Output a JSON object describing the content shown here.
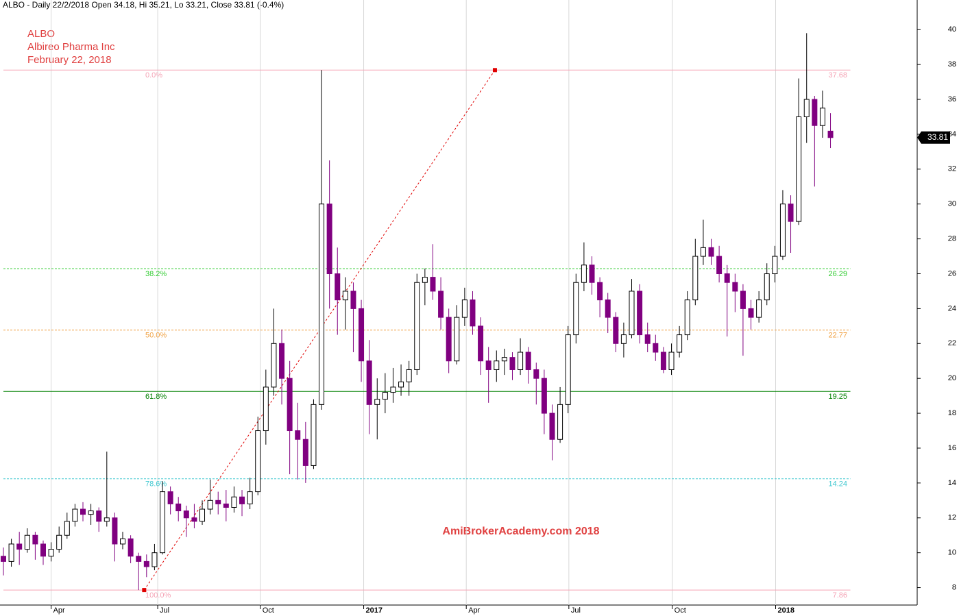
{
  "chart_data": {
    "type": "candlestick",
    "header": "ALBO - Daily 22/2/2018 Open 34.18, Hi 35.21, Lo 33.21, Close 33.81 (-0.4%)",
    "title_lines": [
      "ALBO",
      "Albireo Pharma Inc",
      "February 22, 2018"
    ],
    "watermark": "AmiBrokerAcademy.com  2018",
    "up_color": "#000000",
    "down_color": "#800080",
    "xlim": [
      -0.43,
      114.9
    ],
    "xticks": [
      {
        "value": 6,
        "label": "Apr"
      },
      {
        "value": 19.4,
        "label": "Jul"
      },
      {
        "value": 32.3,
        "label": "Oct"
      },
      {
        "value": 45.3,
        "label": "2017",
        "major": true
      },
      {
        "value": 58.2,
        "label": "Apr"
      },
      {
        "value": 71.1,
        "label": "Jul"
      },
      {
        "value": 84.1,
        "label": "Oct"
      },
      {
        "value": 97.1,
        "label": "2018",
        "major": true
      }
    ],
    "ylim": [
      7.0,
      41.7
    ],
    "yticks": [
      8,
      10,
      12,
      14,
      16,
      18,
      20,
      22,
      24,
      26,
      28,
      30,
      32,
      34,
      36,
      38,
      40
    ],
    "fib_anchors": [
      {
        "x": 17.7,
        "y": 7.86
      },
      {
        "x": 61.8,
        "y": 37.68
      }
    ],
    "fib_levels": [
      {
        "value": 37.68,
        "label": "0.0%",
        "color": "#f5a3b5",
        "dash": false
      },
      {
        "value": 26.29,
        "label": "38.2%",
        "color": "#33cc33",
        "dash": true
      },
      {
        "value": 22.77,
        "label": "50.0%",
        "color": "#f0a040",
        "dash": true
      },
      {
        "value": 19.25,
        "label": "61.8%",
        "color": "#008000",
        "dash": false
      },
      {
        "value": 14.24,
        "label": "78.6%",
        "color": "#40c8d0",
        "dash": true
      },
      {
        "value": 7.86,
        "label": "100.0%",
        "color": "#f5a3b5",
        "dash": false
      }
    ],
    "candles": [
      [
        9.8,
        10.3,
        8.7,
        9.5
      ],
      [
        9.5,
        10.8,
        9.2,
        10.5
      ],
      [
        10.5,
        11.2,
        9.3,
        10.2
      ],
      [
        10.2,
        11.4,
        10,
        11
      ],
      [
        11,
        11.2,
        9.6,
        10.5
      ],
      [
        10.5,
        10.7,
        9.3,
        9.8
      ],
      [
        9.8,
        10.6,
        9.5,
        10.2
      ],
      [
        10.2,
        11.5,
        10,
        11
      ],
      [
        11,
        12.3,
        10.8,
        11.8
      ],
      [
        11.8,
        12.8,
        11.5,
        12.5
      ],
      [
        12.5,
        12.9,
        11.8,
        12.2
      ],
      [
        12.2,
        12.8,
        11.6,
        12.4
      ],
      [
        12.4,
        12.6,
        11.2,
        11.8
      ],
      [
        11.8,
        15.8,
        11.5,
        12
      ],
      [
        12,
        12.3,
        9.5,
        10.5
      ],
      [
        10.5,
        11.2,
        10.2,
        10.8
      ],
      [
        10.8,
        11,
        9.4,
        9.8
      ],
      [
        9.8,
        10,
        7.86,
        9.5
      ],
      [
        9.5,
        9.9,
        8.6,
        9.2
      ],
      [
        9.2,
        10.5,
        9,
        10
      ],
      [
        10,
        14.1,
        9.9,
        13.5
      ],
      [
        13.5,
        13.8,
        12.2,
        12.8
      ],
      [
        12.8,
        13.2,
        11.8,
        12.4
      ],
      [
        12.4,
        12.7,
        10.9,
        12
      ],
      [
        12,
        12.8,
        11.4,
        11.8
      ],
      [
        11.8,
        13,
        11.6,
        12.5
      ],
      [
        12.5,
        14.2,
        12.2,
        13
      ],
      [
        13,
        13.5,
        12.2,
        12.8
      ],
      [
        12.8,
        13.6,
        11.8,
        12.6
      ],
      [
        12.6,
        13.8,
        12.3,
        13.2
      ],
      [
        13.2,
        13.6,
        12.1,
        12.8
      ],
      [
        12.8,
        14.3,
        12.5,
        13.5
      ],
      [
        13.5,
        17.8,
        13.3,
        17
      ],
      [
        17,
        20.5,
        16.2,
        19.5
      ],
      [
        19.5,
        24,
        19,
        22
      ],
      [
        22,
        22.8,
        18.5,
        20
      ],
      [
        20,
        21,
        14.5,
        17
      ],
      [
        17,
        18.6,
        14.2,
        16.5
      ],
      [
        16.5,
        17.5,
        14,
        15
      ],
      [
        15,
        18.8,
        14.8,
        18.5
      ],
      [
        18.5,
        37.68,
        18.2,
        30
      ],
      [
        30,
        32.5,
        24,
        26
      ],
      [
        26,
        27.5,
        22.5,
        24.5
      ],
      [
        24.5,
        25.8,
        22.8,
        25
      ],
      [
        25,
        25.5,
        21.5,
        24
      ],
      [
        24,
        24.5,
        19.8,
        21
      ],
      [
        21,
        22.2,
        16.8,
        18.5
      ],
      [
        18.5,
        20,
        16.5,
        18.8
      ],
      [
        18.8,
        20.3,
        18,
        19.2
      ],
      [
        19.2,
        20.6,
        18.6,
        19.5
      ],
      [
        19.5,
        20.8,
        19,
        19.8
      ],
      [
        19.8,
        21,
        19,
        20.5
      ],
      [
        20.5,
        26,
        20.2,
        25.5
      ],
      [
        25.5,
        26.3,
        24.2,
        25.8
      ],
      [
        25.8,
        27.7,
        24.5,
        25
      ],
      [
        25,
        25.8,
        22.8,
        23.5
      ],
      [
        23.5,
        24,
        20.3,
        21
      ],
      [
        21,
        24.2,
        20.8,
        23.5
      ],
      [
        23.5,
        25.2,
        23,
        24.5
      ],
      [
        24.5,
        25,
        22.5,
        23
      ],
      [
        23,
        23.5,
        20.2,
        21
      ],
      [
        21,
        21.8,
        18.6,
        20.5
      ],
      [
        20.5,
        21.6,
        19.8,
        21
      ],
      [
        21,
        21.7,
        20.2,
        21.2
      ],
      [
        21.2,
        21.5,
        19.9,
        20.5
      ],
      [
        20.5,
        22.3,
        20.2,
        21.5
      ],
      [
        21.5,
        21.8,
        19.7,
        20.5
      ],
      [
        20.5,
        20.9,
        18.5,
        20
      ],
      [
        20,
        20.5,
        16.8,
        18
      ],
      [
        18,
        18.5,
        15.3,
        16.5
      ],
      [
        16.5,
        19.5,
        16.3,
        18.5
      ],
      [
        18.5,
        23,
        18,
        22.5
      ],
      [
        22.5,
        26,
        22,
        25.5
      ],
      [
        25.5,
        27.8,
        25,
        26.5
      ],
      [
        26.5,
        27,
        24.8,
        25.5
      ],
      [
        25.5,
        25.8,
        23.5,
        24.5
      ],
      [
        24.5,
        24.9,
        22.6,
        23.5
      ],
      [
        23.5,
        23.8,
        21.5,
        22
      ],
      [
        22,
        23.2,
        21.2,
        22.5
      ],
      [
        22.5,
        25.7,
        22.3,
        25
      ],
      [
        25,
        25.4,
        22,
        22.5
      ],
      [
        22.5,
        23.2,
        21.5,
        22
      ],
      [
        22,
        22.5,
        21,
        21.5
      ],
      [
        21.5,
        21.8,
        20.3,
        20.5
      ],
      [
        20.5,
        22,
        20.2,
        21.5
      ],
      [
        21.5,
        23,
        21.2,
        22.5
      ],
      [
        22.5,
        25,
        22.2,
        24.5
      ],
      [
        24.5,
        28,
        24.2,
        27
      ],
      [
        27,
        29.1,
        26.5,
        27.5
      ],
      [
        27.5,
        28,
        26.5,
        27
      ],
      [
        27,
        27.6,
        25.5,
        26
      ],
      [
        26,
        26.5,
        22.4,
        25.5
      ],
      [
        25.5,
        26,
        23.8,
        25
      ],
      [
        25,
        25.4,
        21.3,
        24
      ],
      [
        24,
        24.5,
        22.8,
        23.5
      ],
      [
        23.5,
        25,
        23.2,
        24.5
      ],
      [
        24.5,
        26.6,
        24.2,
        26
      ],
      [
        26,
        27.6,
        25.5,
        27
      ],
      [
        27,
        30.8,
        26.8,
        30
      ],
      [
        30,
        30.5,
        27.2,
        29
      ],
      [
        29,
        37.2,
        28.8,
        35
      ],
      [
        35,
        39.8,
        33.5,
        36
      ],
      [
        36,
        36.2,
        31,
        34.5
      ],
      [
        34.5,
        36.5,
        33.8,
        35.5
      ],
      [
        34.18,
        35.21,
        33.21,
        33.81
      ]
    ]
  }
}
